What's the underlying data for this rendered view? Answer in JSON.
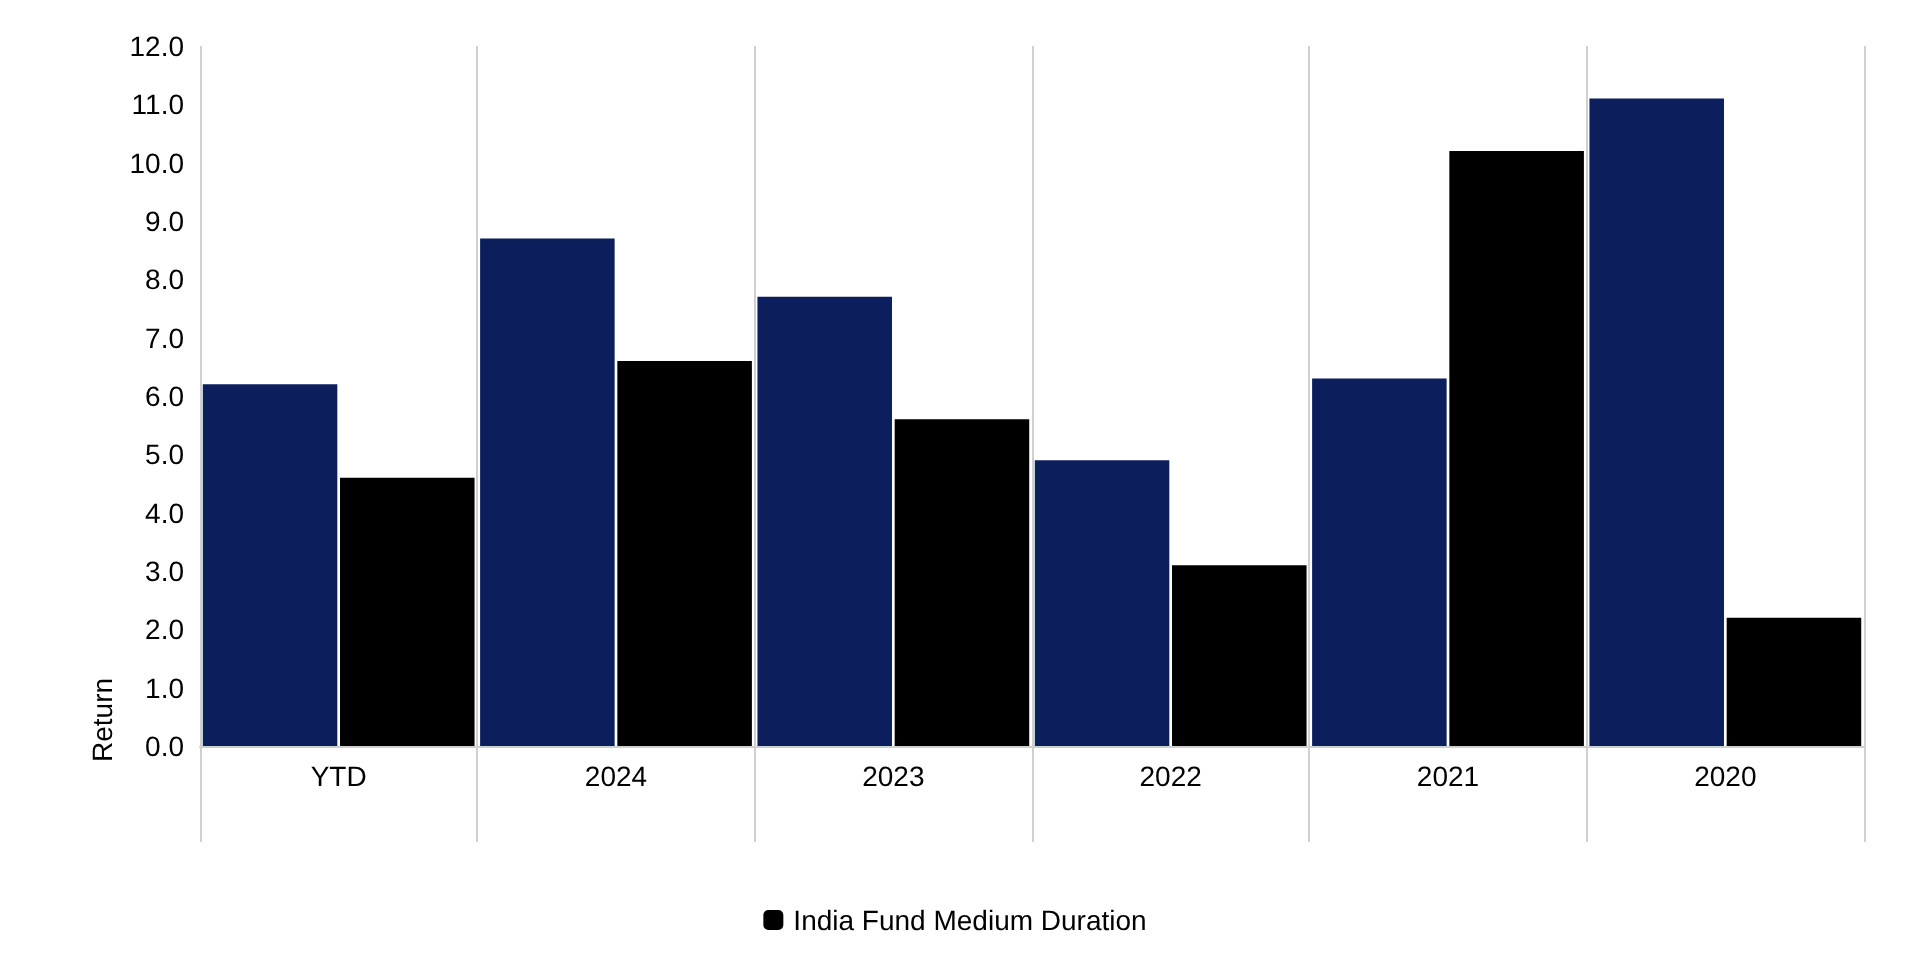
{
  "chart_data": {
    "type": "bar",
    "ylabel": "Return",
    "categories": [
      "YTD",
      "2024",
      "2023",
      "2022",
      "2021",
      "2020"
    ],
    "series": [
      {
        "color": "#0c1f5c",
        "values": [
          6.2,
          8.7,
          7.7,
          4.9,
          6.3,
          11.1
        ]
      },
      {
        "name": "India Fund Medium Duration",
        "color": "#000000",
        "values": [
          4.6,
          6.6,
          5.6,
          3.1,
          10.2,
          2.2
        ]
      }
    ],
    "ylim": [
      0,
      12
    ],
    "yticks": [
      {
        "value": 0,
        "label": "0.0"
      },
      {
        "value": 1,
        "label": "1.0"
      },
      {
        "value": 2,
        "label": "2.0"
      },
      {
        "value": 3,
        "label": "3.0"
      },
      {
        "value": 4,
        "label": "4.0"
      },
      {
        "value": 5,
        "label": "5.0"
      },
      {
        "value": 6,
        "label": "6.0"
      },
      {
        "value": 7,
        "label": "7.0"
      },
      {
        "value": 8,
        "label": "8.0"
      },
      {
        "value": 9,
        "label": "9.0"
      },
      {
        "value": 10,
        "label": "10.0"
      },
      {
        "value": 11,
        "label": "11.0"
      },
      {
        "value": 12,
        "label": "12.0"
      }
    ],
    "grid": "x",
    "legend": "bottom"
  }
}
